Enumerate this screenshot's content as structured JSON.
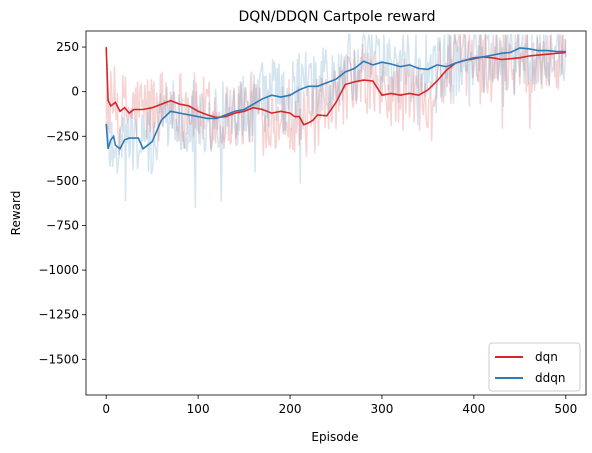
{
  "chart_data": {
    "type": "line",
    "title": "DQN/DDQN Cartpole reward",
    "xlabel": "Episode",
    "ylabel": "Reward",
    "xlim": [
      -22,
      522
    ],
    "ylim": [
      -1700,
      340
    ],
    "x_ticks": [
      0,
      100,
      200,
      300,
      400,
      500
    ],
    "y_ticks": [
      250,
      0,
      -250,
      -500,
      -750,
      -1000,
      -1250,
      -1500
    ],
    "y_tick_labels": [
      "250",
      "0",
      "−250",
      "−500",
      "−750",
      "−1000",
      "−1250",
      "−1500"
    ],
    "grid": false,
    "legend_position": "lower-right",
    "series": [
      {
        "name": "dqn",
        "color": "#d62728",
        "x": [
          0,
          2,
          5,
          10,
          15,
          20,
          25,
          30,
          40,
          50,
          60,
          70,
          80,
          90,
          100,
          110,
          120,
          130,
          140,
          150,
          160,
          170,
          180,
          190,
          200,
          205,
          210,
          215,
          220,
          225,
          230,
          240,
          250,
          260,
          270,
          280,
          290,
          300,
          310,
          320,
          330,
          340,
          350,
          360,
          370,
          380,
          390,
          400,
          410,
          420,
          430,
          440,
          450,
          460,
          470,
          480,
          490,
          500
        ],
        "values": [
          250,
          -50,
          -80,
          -60,
          -110,
          -90,
          -120,
          -100,
          -100,
          -90,
          -70,
          -50,
          -70,
          -80,
          -110,
          -130,
          -145,
          -140,
          -120,
          -110,
          -90,
          -100,
          -120,
          -110,
          -120,
          -140,
          -140,
          -185,
          -175,
          -160,
          -130,
          -135,
          -60,
          40,
          55,
          65,
          60,
          -20,
          -10,
          -20,
          -10,
          -20,
          10,
          60,
          120,
          160,
          175,
          185,
          195,
          190,
          180,
          185,
          190,
          200,
          205,
          210,
          215,
          220
        ]
      },
      {
        "name": "ddqn",
        "color": "#2c7bb6",
        "x": [
          0,
          2,
          5,
          8,
          10,
          15,
          20,
          25,
          30,
          35,
          40,
          45,
          50,
          55,
          60,
          70,
          80,
          90,
          100,
          110,
          120,
          130,
          140,
          150,
          160,
          170,
          180,
          190,
          200,
          210,
          220,
          230,
          240,
          250,
          260,
          270,
          280,
          290,
          300,
          310,
          320,
          330,
          340,
          350,
          360,
          370,
          380,
          390,
          400,
          410,
          420,
          430,
          440,
          450,
          460,
          470,
          480,
          490,
          500
        ],
        "values": [
          -180,
          -320,
          -270,
          -250,
          -300,
          -320,
          -270,
          -260,
          -260,
          -260,
          -320,
          -300,
          -280,
          -220,
          -160,
          -110,
          -120,
          -130,
          -140,
          -150,
          -150,
          -130,
          -110,
          -100,
          -70,
          -40,
          -20,
          -30,
          -20,
          10,
          30,
          30,
          50,
          70,
          110,
          130,
          170,
          150,
          165,
          155,
          140,
          150,
          130,
          125,
          150,
          140,
          160,
          175,
          190,
          195,
          205,
          215,
          220,
          245,
          240,
          230,
          230,
          225,
          225
        ]
      }
    ]
  }
}
